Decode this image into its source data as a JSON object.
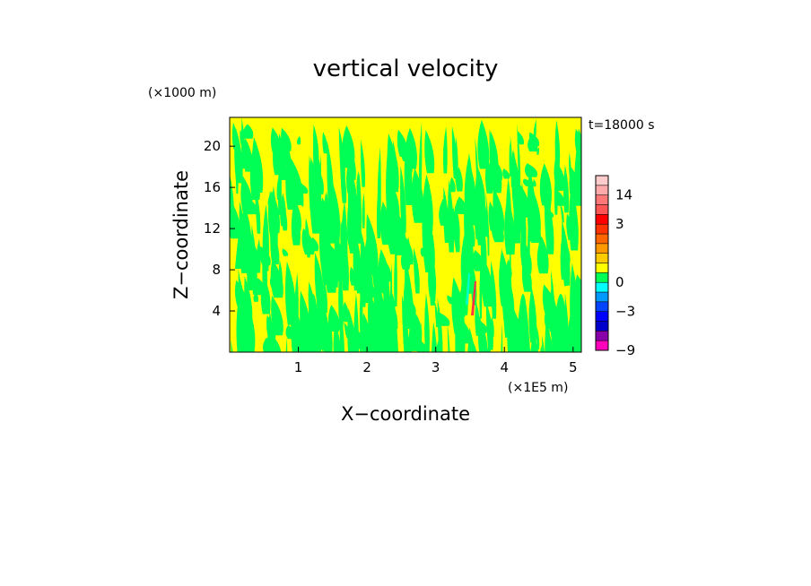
{
  "chart_data": {
    "type": "heatmap",
    "title": "vertical velocity",
    "xlabel": "X−coordinate",
    "ylabel": "Z−coordinate",
    "x_unit": "(×1E5 m)",
    "y_unit": "(×1000 m)",
    "time_label": "t=18000 s",
    "xlim": [
      0,
      5.12
    ],
    "ylim": [
      0,
      22.8
    ],
    "x_ticks": [
      1,
      2,
      3,
      4,
      5
    ],
    "x_tick_labels": [
      "1",
      "2",
      "3",
      "4",
      "5"
    ],
    "y_ticks": [
      4,
      8,
      12,
      16,
      20
    ],
    "y_tick_labels": [
      "4",
      "8",
      "12",
      "16",
      "20"
    ],
    "field_dominant_colors": [
      "#ffff00",
      "#00ff55"
    ],
    "colorbar": {
      "bins": [
        {
          "lo": -9,
          "hi": -7,
          "color": "#ff00bb"
        },
        {
          "lo": -7,
          "hi": -5,
          "color": "#8800aa"
        },
        {
          "lo": -5,
          "hi": -4,
          "color": "#0000cc"
        },
        {
          "lo": -4,
          "hi": -3,
          "color": "#0000ff"
        },
        {
          "lo": -3,
          "hi": -2,
          "color": "#0044ff"
        },
        {
          "lo": -2,
          "hi": -1,
          "color": "#0099ff"
        },
        {
          "lo": -1,
          "hi": 0,
          "color": "#00ffff"
        },
        {
          "lo": 0,
          "hi": 0.5,
          "color": "#00ff55"
        },
        {
          "lo": 0.5,
          "hi": 1,
          "color": "#ffff00"
        },
        {
          "lo": 1,
          "hi": 1.5,
          "color": "#ffcc00"
        },
        {
          "lo": 1.5,
          "hi": 2,
          "color": "#ff9900"
        },
        {
          "lo": 2,
          "hi": 2.5,
          "color": "#ff6600"
        },
        {
          "lo": 2.5,
          "hi": 3,
          "color": "#ff3300"
        },
        {
          "lo": 3,
          "hi": 6,
          "color": "#ff0000"
        },
        {
          "lo": 6,
          "hi": 10,
          "color": "#ff5555"
        },
        {
          "lo": 10,
          "hi": 14,
          "color": "#ff7777"
        },
        {
          "lo": 14,
          "hi": 18,
          "color": "#ffaaaa"
        },
        {
          "lo": 18,
          "hi": 22,
          "color": "#ffcccc"
        }
      ],
      "labels": [
        {
          "value": 14,
          "text": "14"
        },
        {
          "value": 3,
          "text": "3"
        },
        {
          "value": 0,
          "text": "0"
        },
        {
          "value": -3,
          "text": "−3"
        },
        {
          "value": -9,
          "text": "−9"
        }
      ]
    }
  }
}
